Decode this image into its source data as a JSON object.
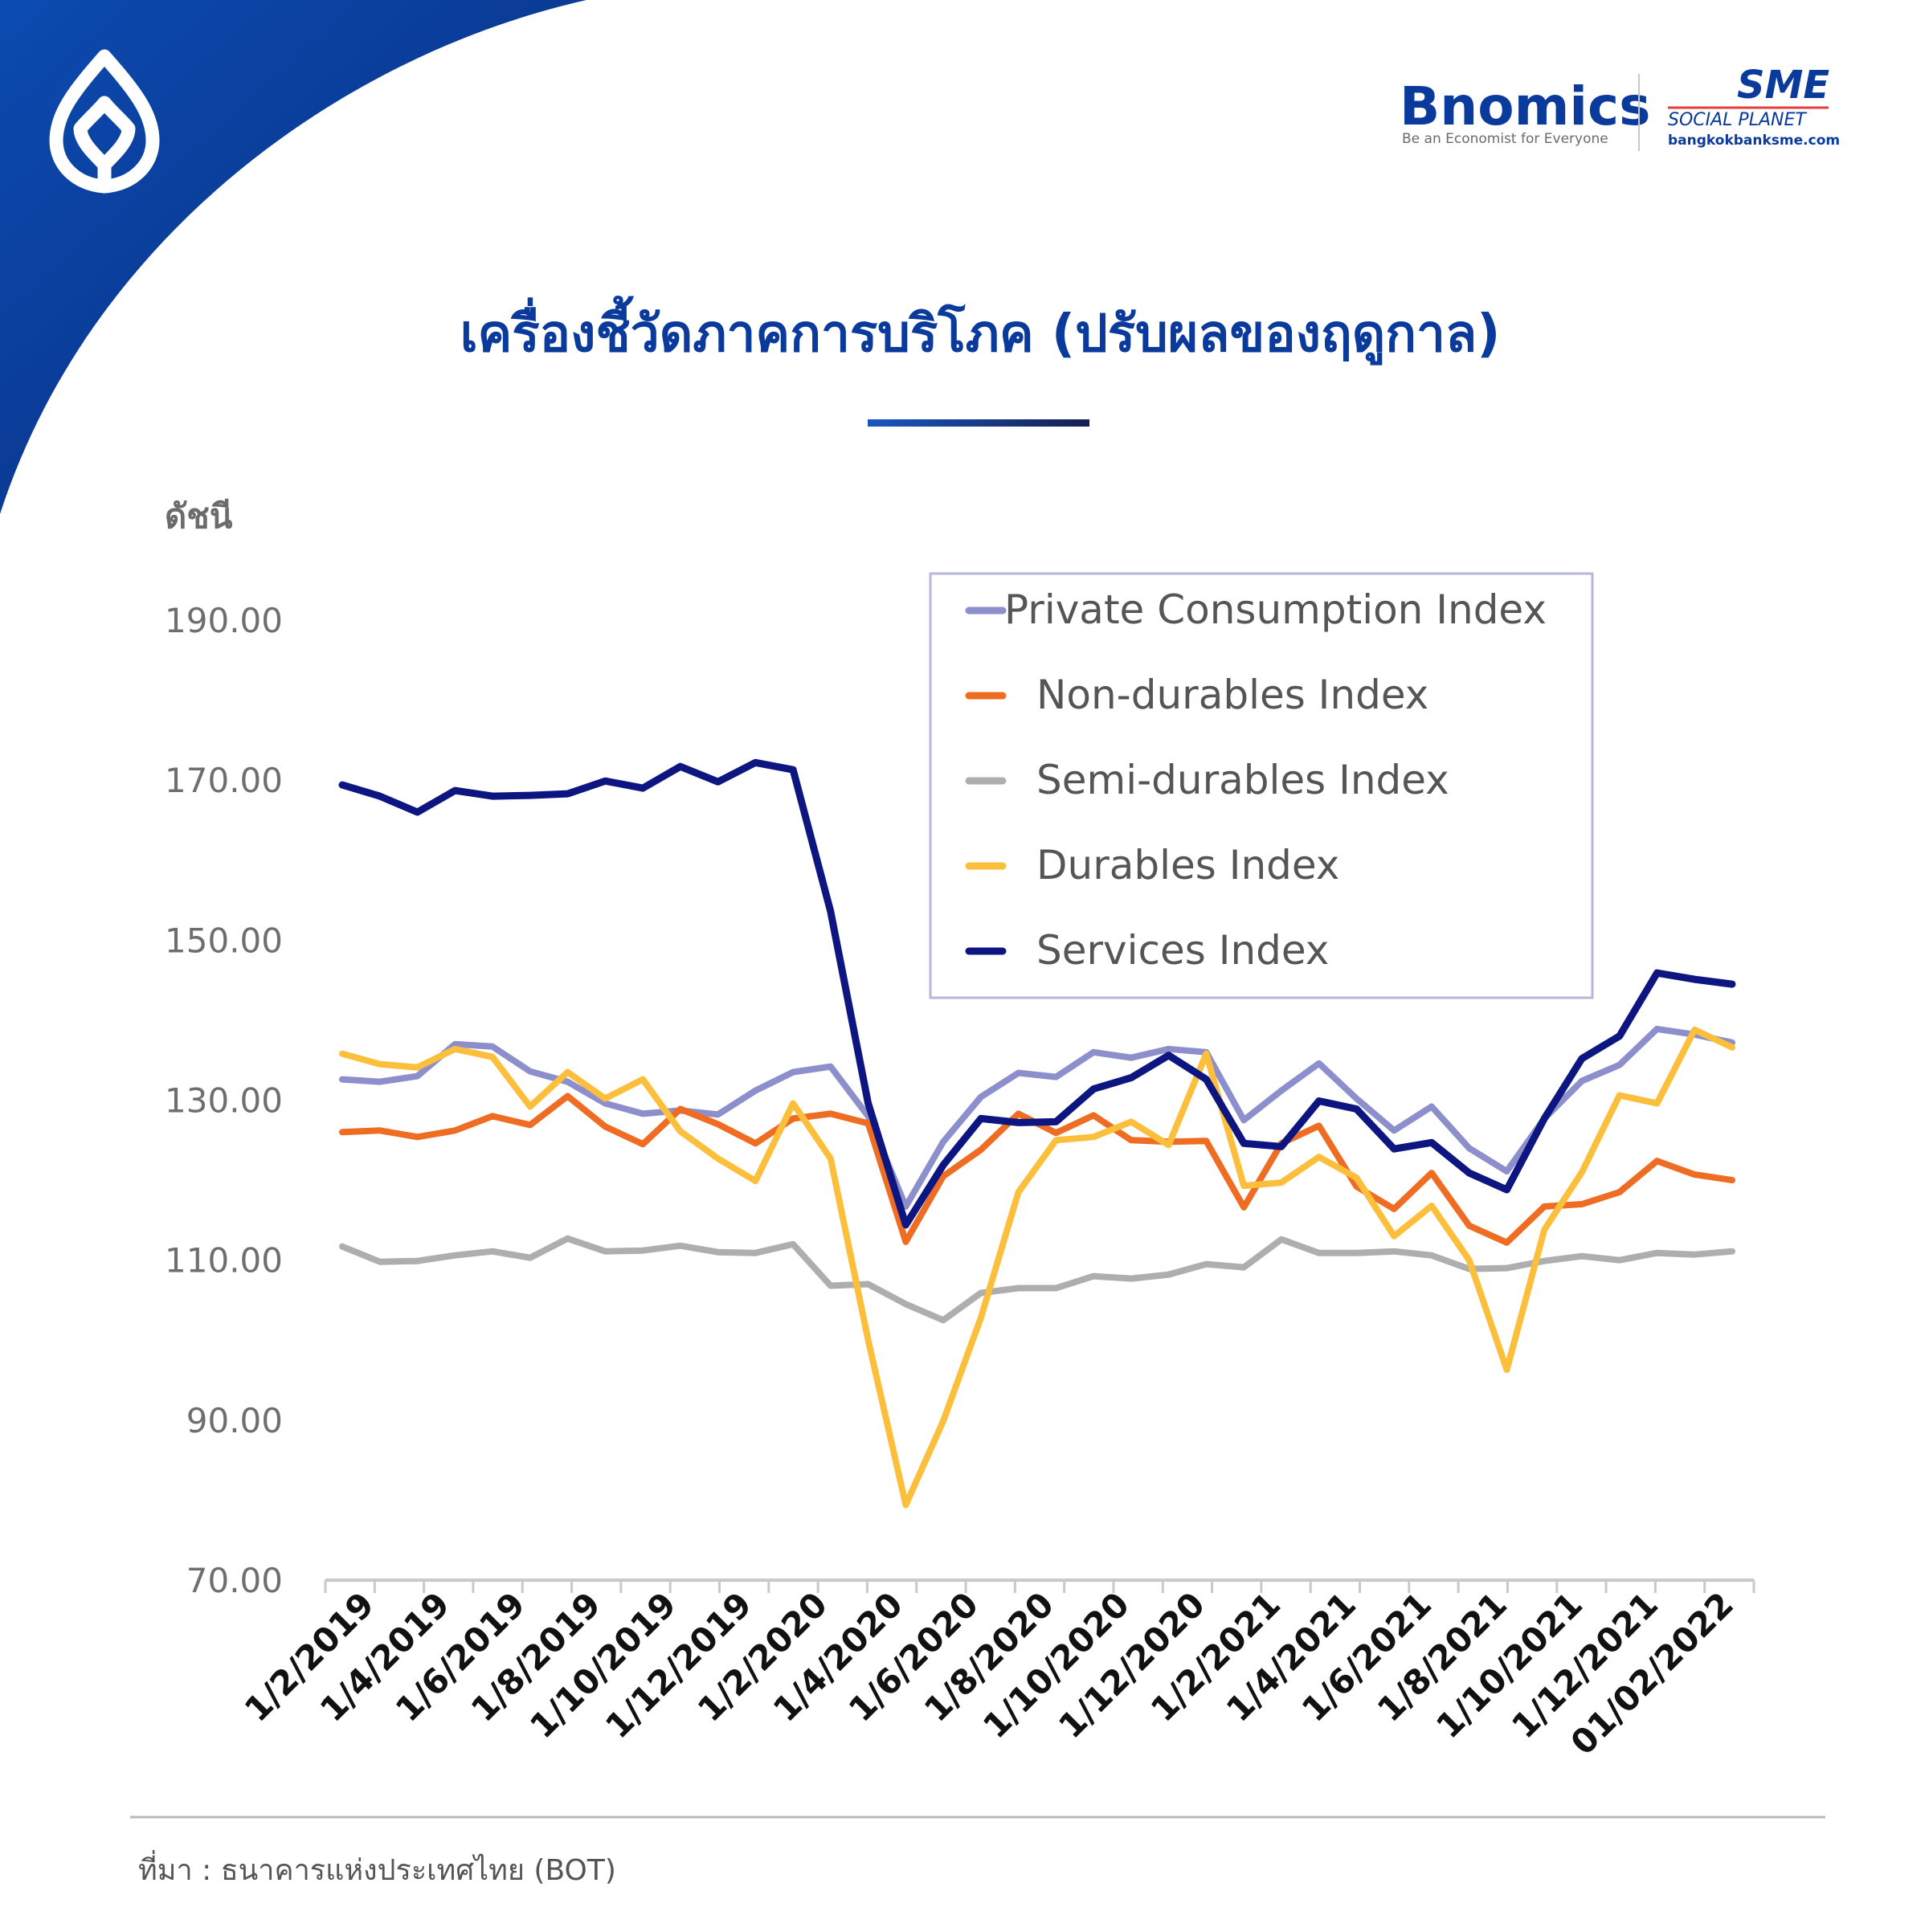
{
  "header": {
    "bnomics_logo": "Bnomics",
    "bnomics_tagline": "Be an Economist for Everyone",
    "sme_logo": "SME",
    "sme_sub": "SOCIAL PLANET",
    "sme_url": "bangkokbanksme.com"
  },
  "source_note": "ที่มา : ธนาคารแห่งประเทศไทย (BOT)",
  "colors": {
    "brand_navy": "#0a3a9c",
    "accent_line": "#1b2f6e",
    "private_consumption": "#8d8fcc",
    "non_durables": "#ef6c23",
    "semi_durables": "#aeaeae",
    "durables": "#fbbf3c",
    "services": "#0d1680"
  },
  "chart_data": {
    "type": "line",
    "title": "เครื่องชี้วัดภาคการบริโภค (ปรับผลของฤดูกาล)",
    "ylabel": "ดัชนี",
    "xlabel": "",
    "ylim": [
      70,
      190
    ],
    "yticks": [
      "190.00",
      "170.00",
      "150.00",
      "130.00",
      "110.00",
      "90.00",
      "70.00"
    ],
    "grid": false,
    "legend_position": "top-right",
    "x_tick_labels": [
      "1/2/2019",
      "1/4/2019",
      "1/6/2019",
      "1/8/2019",
      "1/10/2019",
      "1/12/2019",
      "1/2/2020",
      "1/4/2020",
      "1/6/2020",
      "1/8/2020",
      "1/10/2020",
      "1/12/2020",
      "1/2/2021",
      "1/4/2021",
      "1/6/2021",
      "1/8/2021",
      "1/10/2021",
      "1/12/2021",
      "01/02/2022"
    ],
    "x": [
      "2019-02",
      "2019-03",
      "2019-04",
      "2019-05",
      "2019-06",
      "2019-07",
      "2019-08",
      "2019-09",
      "2019-10",
      "2019-11",
      "2019-12",
      "2020-01",
      "2020-02",
      "2020-03",
      "2020-04",
      "2020-05",
      "2020-06",
      "2020-07",
      "2020-08",
      "2020-09",
      "2020-10",
      "2020-11",
      "2020-12",
      "2021-01",
      "2021-02",
      "2021-03",
      "2021-04",
      "2021-05",
      "2021-06",
      "2021-07",
      "2021-08",
      "2021-09",
      "2021-10",
      "2021-11",
      "2021-12",
      "2022-01",
      "2022-02",
      "2022-03"
    ],
    "series": [
      {
        "name": "Private Consumption Index",
        "color": "#8d8fcc",
        "values": [
          132.6,
          132.3,
          133.0,
          137.0,
          136.7,
          133.6,
          132.3,
          129.6,
          128.3,
          128.7,
          128.2,
          131.2,
          133.5,
          134.2,
          128.0,
          116.7,
          124.8,
          130.4,
          133.4,
          132.9,
          136.0,
          135.3,
          136.4,
          136.0,
          127.5,
          131.2,
          134.6,
          130.2,
          126.2,
          129.2,
          124.0,
          121.1,
          127.7,
          132.4,
          134.4,
          138.9,
          138.2,
          137.2
        ]
      },
      {
        "name": "Non-durables Index",
        "color": "#ef6c23",
        "values": [
          126.0,
          126.2,
          125.4,
          126.2,
          128.0,
          126.9,
          130.5,
          126.7,
          124.5,
          128.9,
          127.0,
          124.6,
          127.7,
          128.3,
          127.1,
          112.3,
          120.5,
          123.8,
          128.3,
          125.9,
          128.1,
          125.0,
          124.8,
          124.9,
          116.6,
          124.6,
          126.8,
          119.2,
          116.4,
          120.9,
          114.3,
          112.2,
          116.7,
          117.0,
          118.5,
          122.4,
          120.7,
          120.0
        ]
      },
      {
        "name": "Semi-durables Index",
        "color": "#aeaeae",
        "values": [
          111.7,
          109.8,
          109.9,
          110.6,
          111.1,
          110.3,
          112.7,
          111.1,
          111.2,
          111.8,
          111.0,
          110.9,
          112.0,
          106.8,
          107.0,
          104.5,
          102.5,
          105.9,
          106.5,
          106.5,
          108.0,
          107.7,
          108.2,
          109.5,
          109.1,
          112.6,
          110.9,
          110.9,
          111.1,
          110.6,
          108.9,
          109.0,
          109.9,
          110.5,
          110.0,
          110.9,
          110.7,
          111.1
        ]
      },
      {
        "name": "Durables Index",
        "color": "#fbbf3c",
        "values": [
          135.8,
          134.5,
          134.1,
          136.4,
          135.4,
          129.2,
          133.5,
          130.2,
          132.6,
          126.1,
          122.7,
          119.9,
          129.6,
          122.7,
          100.0,
          79.4,
          89.9,
          102.8,
          118.5,
          125.0,
          125.4,
          127.3,
          124.4,
          135.8,
          119.3,
          119.7,
          122.9,
          120.3,
          113.0,
          116.8,
          110.0,
          96.3,
          113.8,
          121.0,
          130.6,
          129.6,
          138.8,
          136.6
        ]
      },
      {
        "name": "Services Index",
        "color": "#0d1680",
        "values": [
          169.4,
          168.0,
          166.0,
          168.7,
          168.0,
          168.1,
          168.3,
          169.9,
          169.0,
          171.7,
          169.8,
          172.2,
          171.3,
          153.6,
          129.6,
          114.4,
          121.9,
          127.7,
          127.2,
          127.3,
          131.4,
          132.8,
          135.6,
          132.6,
          124.6,
          124.2,
          129.9,
          128.9,
          123.9,
          124.7,
          120.9,
          118.8,
          127.7,
          135.2,
          138.0,
          145.9,
          145.1,
          144.5
        ]
      }
    ]
  }
}
